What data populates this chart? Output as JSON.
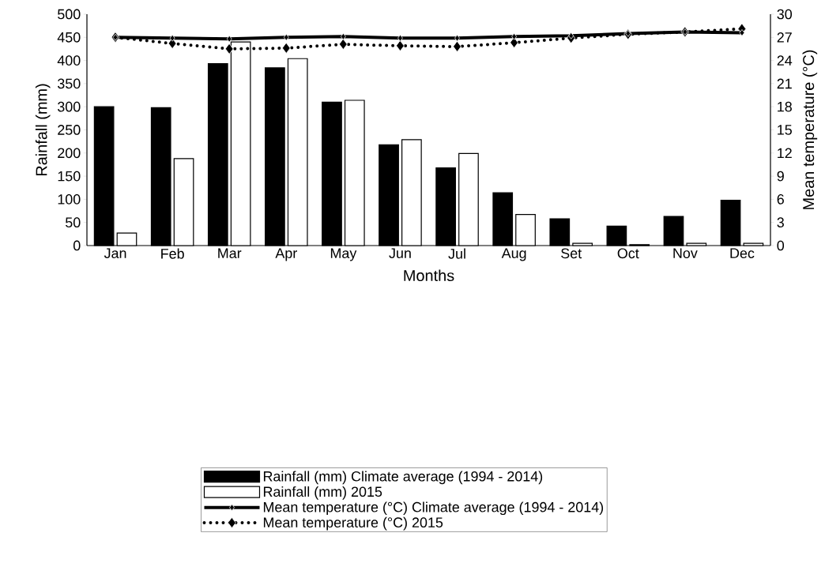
{
  "chart_data": {
    "type": "bar",
    "xlabel": "Months",
    "ylabel": "Rainfall (mm)",
    "y2label": "Mean temperature (°C)",
    "categories": [
      "Jan",
      "Feb",
      "Mar",
      "Apr",
      "May",
      "Jun",
      "Jul",
      "Aug",
      "Set",
      "Oct",
      "Nov",
      "Dec"
    ],
    "series": [
      {
        "name": "Rainfall (mm) Climate average (1994 - 2014)",
        "color": "#000000",
        "values": [
          300,
          298,
          393,
          384,
          310,
          218,
          168,
          114,
          58,
          42,
          63,
          98
        ]
      },
      {
        "name": "Rainfall (mm) 2015",
        "color": "#ffffff",
        "values": [
          27,
          188,
          440,
          404,
          314,
          229,
          199,
          67,
          5,
          2,
          5,
          5
        ]
      },
      {
        "name": "Mean temperature (°C) Climate average (1994 - 2014)",
        "type": "line",
        "axis": "y2",
        "color": "#000000",
        "line_style": "solid",
        "values": [
          27.0,
          26.9,
          26.8,
          27.0,
          27.1,
          26.9,
          26.9,
          27.1,
          27.2,
          27.5,
          27.7,
          27.6
        ]
      },
      {
        "name": "Mean temperature (°C) 2015",
        "type": "line",
        "axis": "y2",
        "color": "#000000",
        "line_style": "dotted",
        "values": [
          27.0,
          26.2,
          25.5,
          25.6,
          26.1,
          25.9,
          25.8,
          26.3,
          26.9,
          27.4,
          27.7,
          28.1
        ]
      }
    ],
    "ylim": [
      0,
      500
    ],
    "yticks": [
      0,
      50,
      100,
      150,
      200,
      250,
      300,
      350,
      400,
      450,
      500
    ],
    "y2lim": [
      0,
      30
    ],
    "y2ticks": [
      0,
      3,
      6,
      9,
      12,
      15,
      18,
      21,
      24,
      27,
      30
    ],
    "marker": "diamond",
    "legend": "bottom",
    "grid": false
  }
}
